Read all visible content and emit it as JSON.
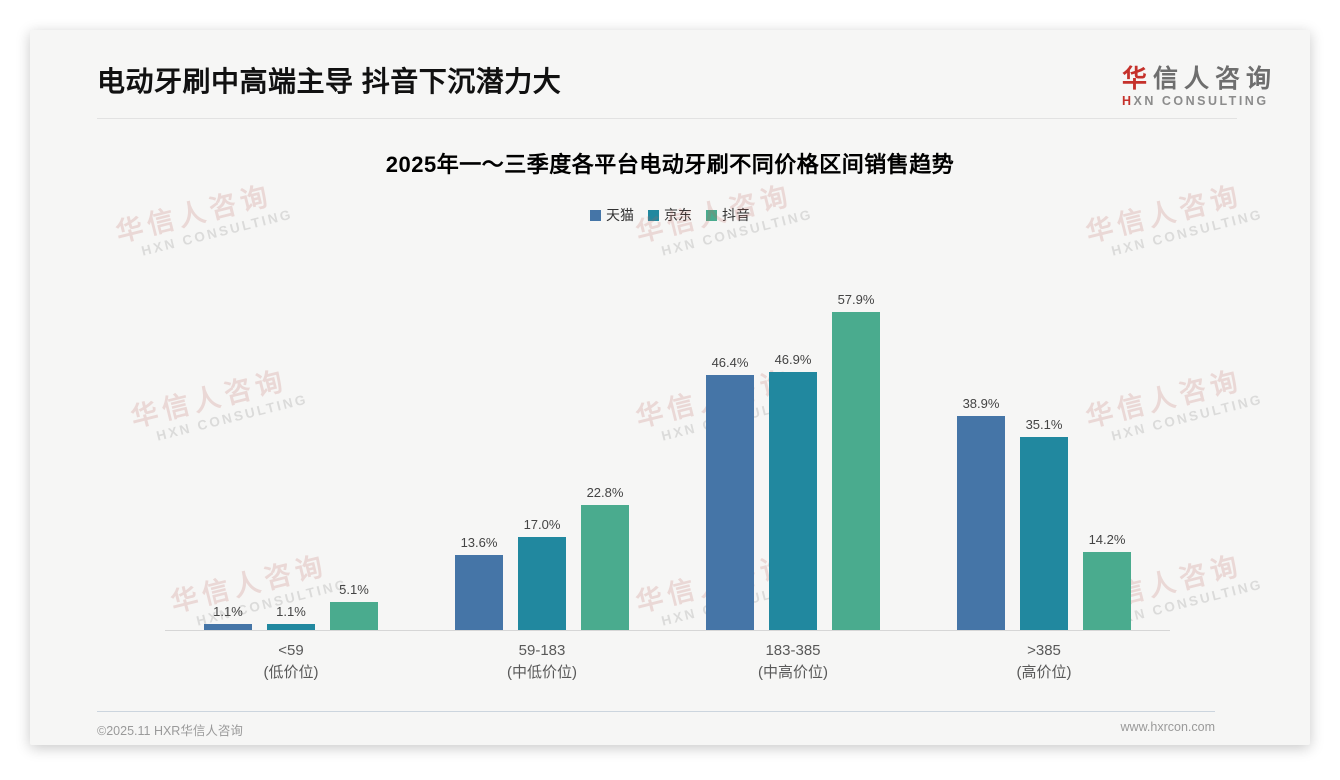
{
  "header": {
    "title": "电动牙刷中高端主导 抖音下沉潜力大",
    "logo": {
      "cn_first": "华",
      "cn_rest": "信人咨询",
      "en_first": "H",
      "en_rest": "XN CONSULTING",
      "brand_red": "#c5312b"
    }
  },
  "watermark": {
    "cn": "华信人咨询",
    "en": "HXN CONSULTING"
  },
  "chart_data": {
    "type": "bar",
    "title": "2025年一～三季度各平台电动牙刷不同价格区间销售趋势",
    "categories": [
      {
        "range": "<59",
        "tier": "(低价位)"
      },
      {
        "range": "59-183",
        "tier": "(中低价位)"
      },
      {
        "range": "183-385",
        "tier": "(中高价位)"
      },
      {
        "range": ">385",
        "tier": "(高价位)"
      }
    ],
    "series": [
      {
        "name": "天猫",
        "color": "#4575a7",
        "values": [
          1.1,
          13.6,
          46.4,
          38.9
        ]
      },
      {
        "name": "京东",
        "color": "#21889f",
        "values": [
          1.1,
          17.0,
          46.9,
          35.1
        ]
      },
      {
        "name": "抖音",
        "color": "#4aab8e",
        "values": [
          5.1,
          22.8,
          57.9,
          14.2
        ]
      }
    ],
    "unit": "%",
    "ylim": [
      0,
      63
    ],
    "xlabel": "",
    "ylabel": "",
    "grid": false,
    "legend_position": "top",
    "value_labels": true
  },
  "footer": {
    "copyright": "©2025.11 HXR华信人咨询",
    "website": "www.hxrcon.com"
  }
}
